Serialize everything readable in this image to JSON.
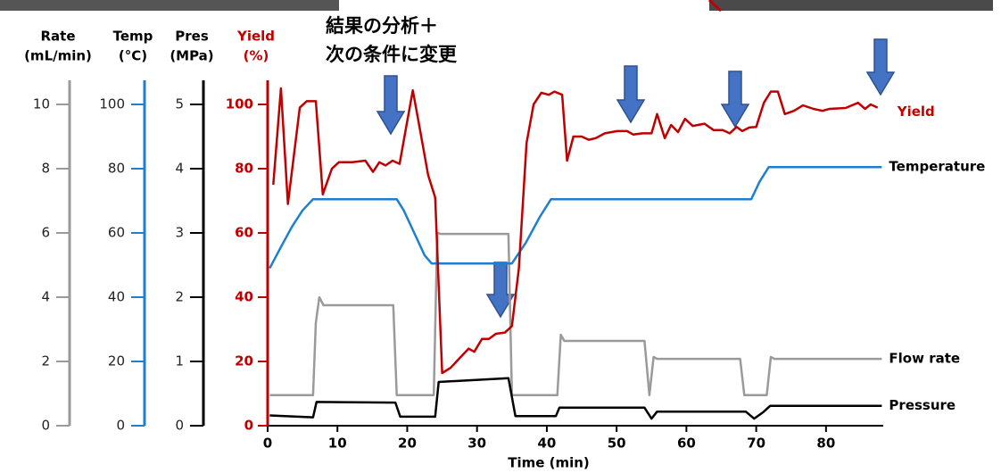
{
  "chart_data": {
    "type": "line",
    "annotation": [
      "結果の分析＋",
      "次の条件に変更"
    ],
    "x_label": "Time (min)",
    "xlim": [
      0,
      88.2
    ],
    "xticks": [
      0,
      10,
      20,
      30,
      40,
      50,
      60,
      70,
      80
    ],
    "series": [
      {
        "name": "Flow rate",
        "color": "#9a9a9a",
        "axis_label": [
          "Rate",
          "(mL/min)"
        ],
        "ylim": [
          0,
          10.75
        ],
        "yticks": [
          0,
          2,
          4,
          6,
          8,
          10
        ],
        "x": [
          0.3,
          6.5,
          6.9,
          7.4,
          8,
          18,
          18.5,
          23.8,
          24.3,
          24.8,
          34.5,
          35,
          41.5,
          42,
          42.5,
          54,
          54.7,
          55.3,
          55.8,
          67.7,
          68.3,
          71.5,
          72.1,
          72.6,
          88
        ],
        "values": [
          0.95,
          0.95,
          3.2,
          4.0,
          3.75,
          3.75,
          0.95,
          0.95,
          6.0,
          5.97,
          5.97,
          0.95,
          0.95,
          2.83,
          2.64,
          2.64,
          0.95,
          2.14,
          2.08,
          2.08,
          0.95,
          0.95,
          2.14,
          2.08,
          2.08
        ]
      },
      {
        "name": "Temperature",
        "color": "#1f7fcf",
        "axis_label": [
          "Temp",
          "(°C)"
        ],
        "ylim": [
          0,
          107.5
        ],
        "yticks": [
          0,
          20,
          40,
          60,
          80,
          100
        ],
        "x": [
          0.3,
          2,
          3.5,
          5,
          6.5,
          18.5,
          19.5,
          21,
          22.5,
          23.5,
          35,
          37,
          39,
          40.6,
          69.3,
          70.5,
          71.8,
          88
        ],
        "values": [
          49,
          56,
          62,
          67,
          70.5,
          70.5,
          67,
          60,
          53,
          50.5,
          50.5,
          57,
          65,
          70.5,
          70.5,
          76,
          80.5,
          80.5
        ]
      },
      {
        "name": "Pressure",
        "color": "#000000",
        "axis_label": [
          "Pres",
          "(MPa)"
        ],
        "ylim": [
          0,
          5.375
        ],
        "yticks": [
          0,
          1,
          2,
          3,
          4,
          5
        ],
        "x": [
          0.3,
          6.5,
          7,
          18.3,
          19,
          24,
          24.5,
          34.5,
          35.5,
          41.3,
          41.8,
          54,
          55,
          55.8,
          68.5,
          69.7,
          71,
          72,
          88
        ],
        "values": [
          0.16,
          0.13,
          0.37,
          0.36,
          0.14,
          0.14,
          0.68,
          0.74,
          0.15,
          0.15,
          0.28,
          0.28,
          0.11,
          0.22,
          0.22,
          0.11,
          0.21,
          0.31,
          0.31
        ]
      },
      {
        "name": "Yield",
        "color": "#c00000",
        "axis_label": [
          "Yield",
          "(%)"
        ],
        "ylim": [
          0,
          107.5
        ],
        "yticks": [
          0,
          20,
          40,
          60,
          80,
          100
        ],
        "x": [
          0.8,
          1.9,
          2.9,
          4.6,
          5.6,
          6.9,
          7.9,
          9.2,
          10.2,
          12.1,
          14,
          15.1,
          16,
          16.9,
          17.9,
          18.9,
          19.9,
          20.8,
          21.7,
          23,
          24,
          25,
          26.2,
          27.5,
          28.8,
          29.6,
          30.7,
          31.7,
          32.7,
          34,
          35,
          36,
          37.1,
          38.1,
          39.2,
          40.3,
          41.1,
          42.2,
          42.9,
          43.8,
          45,
          46,
          47,
          48.3,
          50.1,
          51.5,
          52.4,
          53.7,
          55,
          55.8,
          56.9,
          57.8,
          58.8,
          59.8,
          60.9,
          62.6,
          63.9,
          65.2,
          66.2,
          67.2,
          68,
          69,
          70,
          71.1,
          72.1,
          73.1,
          74.1,
          75.4,
          76.7,
          78.2,
          79.5,
          80.5,
          82.8,
          84.6,
          85.6,
          86.4,
          87.4
        ],
        "values": [
          75,
          105,
          69,
          99,
          101,
          101,
          72,
          80,
          82,
          82,
          82.5,
          79,
          82,
          81,
          82.5,
          81.5,
          93.6,
          104.4,
          93.6,
          78,
          71,
          16.4,
          18,
          21,
          24,
          23,
          27,
          27,
          28.6,
          29,
          31,
          49,
          88,
          100,
          103.6,
          103,
          104,
          103,
          82.5,
          90,
          90,
          89,
          89.5,
          91,
          91.7,
          91.7,
          90.6,
          91,
          91,
          97,
          89.5,
          93.6,
          91.4,
          95.5,
          93.3,
          94,
          92,
          92,
          91,
          93,
          91.7,
          92.8,
          93,
          100.5,
          104,
          104,
          97,
          98,
          99.7,
          98.6,
          98,
          98.6,
          98.9,
          100.5,
          98.6,
          100,
          99
        ]
      }
    ]
  }
}
